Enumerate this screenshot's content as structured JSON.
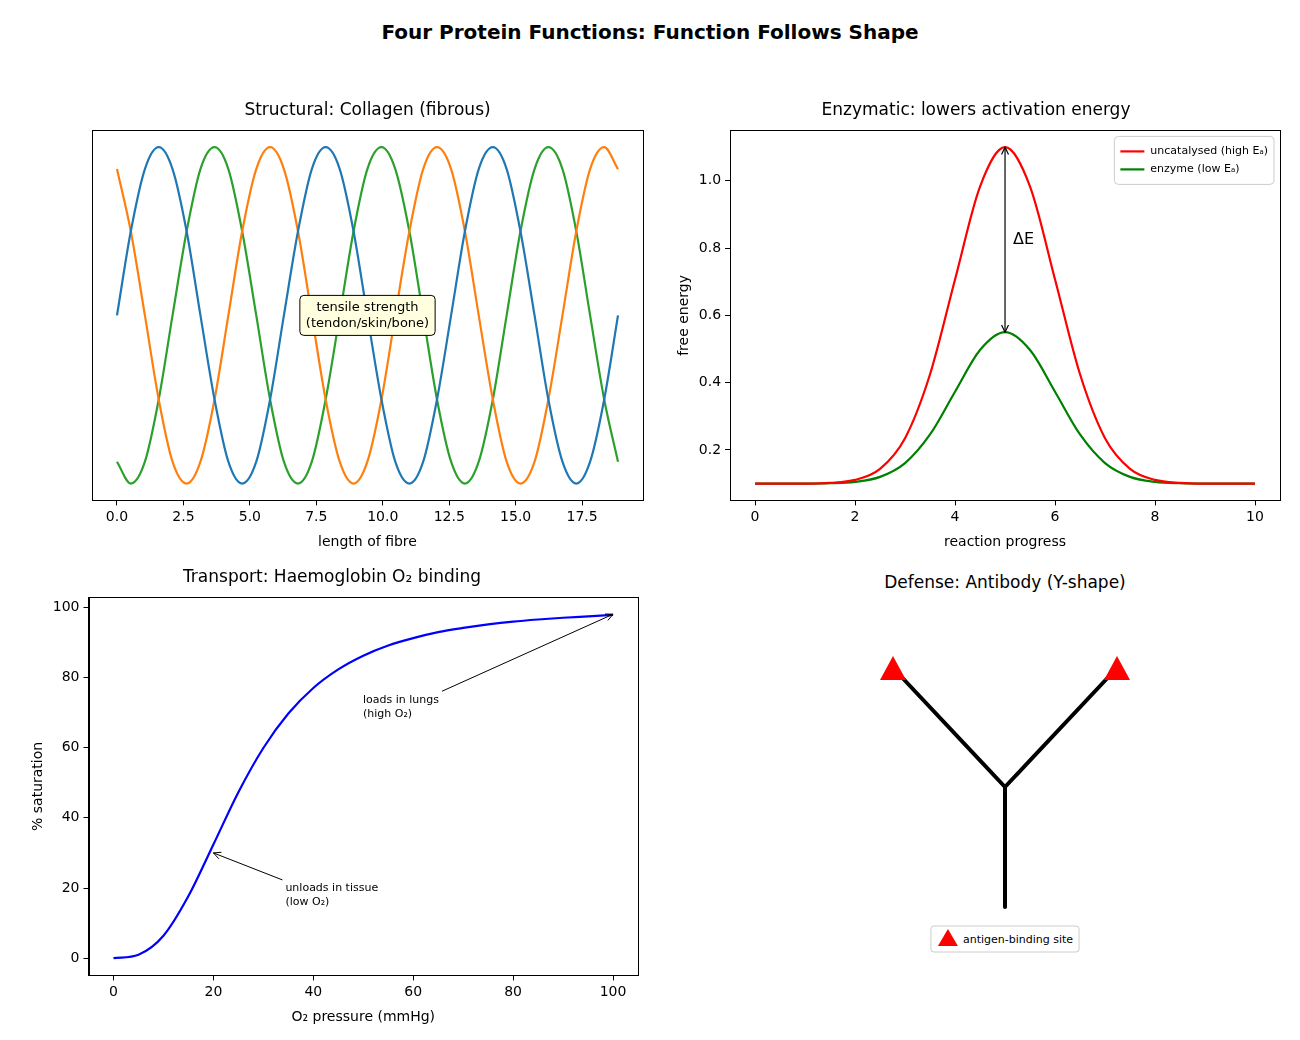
{
  "title": "Four Protein Functions: Function Follows Shape",
  "chart_data": [
    {
      "type": "line",
      "title": "Structural: Collagen (fibrous)",
      "xlabel": "length of fibre",
      "x": [
        0,
        0.52,
        1.05,
        1.57,
        2.09,
        2.62,
        3.14,
        3.67,
        4.19,
        4.71,
        5.24,
        5.76,
        6.28,
        6.81,
        7.33,
        7.85,
        8.38,
        8.9,
        9.42,
        9.95,
        10.47,
        11.0,
        11.52,
        12.04,
        12.57,
        13.09,
        13.61,
        14.14,
        14.66,
        15.18,
        15.71,
        16.23,
        16.76,
        17.28,
        17.8,
        18.33,
        18.85
      ],
      "series": [
        {
          "color": "#1f77b4",
          "values": [
            0,
            0.5,
            0.87,
            1,
            0.87,
            0.5,
            0,
            -0.5,
            -0.87,
            -1,
            -0.87,
            -0.5,
            0,
            0.5,
            0.87,
            1,
            0.87,
            0.5,
            0,
            -0.5,
            -0.87,
            -1,
            -0.87,
            -0.5,
            0,
            0.5,
            0.87,
            1,
            0.87,
            0.5,
            0,
            -0.5,
            -0.87,
            -1,
            -0.87,
            -0.5,
            0
          ]
        },
        {
          "color": "#ff7f0e",
          "values": [
            0.87,
            0.5,
            0,
            -0.5,
            -0.87,
            -1,
            -0.87,
            -0.5,
            0,
            0.5,
            0.87,
            1,
            0.87,
            0.5,
            0,
            -0.5,
            -0.87,
            -1,
            -0.87,
            -0.5,
            0,
            0.5,
            0.87,
            1,
            0.87,
            0.5,
            0,
            -0.5,
            -0.87,
            -1,
            -0.87,
            -0.5,
            0,
            0.5,
            0.87,
            1,
            0.87
          ]
        },
        {
          "color": "#2ca02c",
          "values": [
            -0.87,
            -1,
            -0.87,
            -0.5,
            0,
            0.5,
            0.87,
            1,
            0.87,
            0.5,
            0,
            -0.5,
            -0.87,
            -1,
            -0.87,
            -0.5,
            0,
            0.5,
            0.87,
            1,
            0.87,
            0.5,
            0,
            -0.5,
            -0.87,
            -1,
            -0.87,
            -0.5,
            0,
            0.5,
            0.87,
            1,
            0.87,
            0.5,
            0,
            -0.5,
            -0.87
          ]
        }
      ],
      "xlim": [
        -0.94,
        19.79
      ],
      "ylim": [
        -1.1,
        1.1
      ],
      "xticks": [
        {
          "value": 0,
          "label": "0.0"
        },
        2.5,
        {
          "value": 5,
          "label": "5.0"
        },
        7.5,
        {
          "value": 10,
          "label": "10.0"
        },
        12.5,
        {
          "value": 15,
          "label": "15.0"
        },
        17.5
      ],
      "tick_labels": "x",
      "grid": false,
      "annotations": [
        {
          "text": "tensile strength\n(tendon/skin/bone)"
        }
      ]
    },
    {
      "type": "line",
      "title": "Enzymatic: lowers activation energy",
      "xlabel": "reaction progress",
      "ylabel": "free energy",
      "x": [
        0,
        0.5,
        1,
        1.5,
        2,
        2.5,
        3,
        3.5,
        4,
        4.5,
        5,
        5.5,
        6,
        6.5,
        7,
        7.5,
        8,
        8.5,
        9,
        9.5,
        10
      ],
      "series": [
        {
          "name": "uncatalysed (high Eₐ)",
          "color": "red",
          "values": [
            0.1,
            0.1,
            0.1,
            0.102,
            0.111,
            0.144,
            0.235,
            0.425,
            0.707,
            0.983,
            1.1,
            0.983,
            0.707,
            0.425,
            0.235,
            0.144,
            0.111,
            0.102,
            0.1,
            0.1,
            0.1
          ]
        },
        {
          "name": "enzyme (low Eₐ)",
          "color": "green",
          "values": [
            0.1,
            0.1,
            0.1,
            0.101,
            0.105,
            0.12,
            0.161,
            0.246,
            0.373,
            0.497,
            0.55,
            0.497,
            0.373,
            0.246,
            0.161,
            0.12,
            0.105,
            0.101,
            0.1,
            0.1,
            0.1
          ]
        }
      ],
      "xlim": [
        -0.5,
        10.5
      ],
      "ylim": [
        0.05,
        1.15
      ],
      "xticks": [
        0,
        2,
        4,
        6,
        8,
        10
      ],
      "yticks": [
        0.2,
        0.4,
        0.6,
        0.8,
        {
          "value": 1,
          "label": "1.0"
        }
      ],
      "grid": false,
      "legend": "upper right",
      "annotations": [
        {
          "text": "ΔE",
          "x": 5,
          "y_from": 1.1,
          "y_to": 0.55
        }
      ]
    },
    {
      "type": "line",
      "title": "Transport: Haemoglobin O₂ binding",
      "xlabel": "O₂ pressure (mmHg)",
      "ylabel": "% saturation",
      "x": [
        0,
        5,
        10,
        15,
        20,
        25,
        30,
        35,
        40,
        45,
        50,
        55,
        60,
        65,
        70,
        75,
        80,
        85,
        90,
        95,
        100
      ],
      "series": [
        {
          "color": "blue",
          "values": [
            0,
            1.0,
            6.4,
            17.7,
            32.4,
            47.3,
            59.9,
            69.7,
            77.0,
            82.3,
            86.2,
            89.1,
            91.2,
            92.9,
            94.1,
            95.1,
            95.9,
            96.5,
            97.0,
            97.4,
            97.8
          ]
        }
      ],
      "xlim": [
        -5,
        105
      ],
      "ylim": [
        -4.9,
        102.8
      ],
      "xticks": [
        0,
        20,
        40,
        60,
        80,
        100
      ],
      "yticks": [
        0,
        20,
        40,
        60,
        80,
        100
      ],
      "grid": false,
      "annotations": [
        {
          "text": "unloads in tissue\n(low O₂)",
          "x": 20,
          "y": 30
        },
        {
          "text": "loads in lungs\n(high O₂)",
          "x": 100,
          "y": 98
        }
      ]
    }
  ],
  "diagram": {
    "title": "Defense: Antibody (Y-shape)",
    "label": "antigen-binding site",
    "color": "red",
    "marker": "triangle"
  }
}
